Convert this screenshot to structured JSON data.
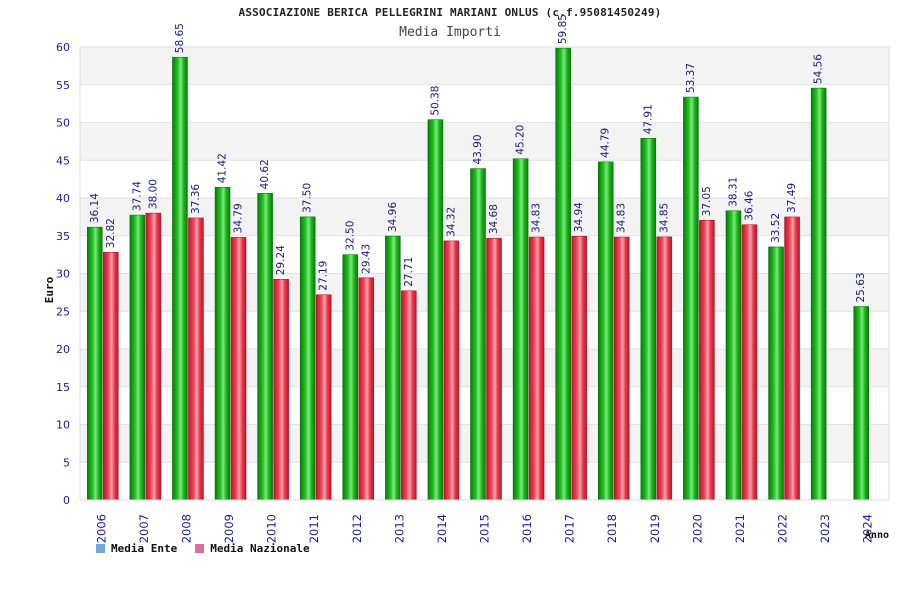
{
  "header": {
    "title": "ASSOCIAZIONE BERICA PELLEGRINI MARIANI ONLUS (c.f.95081450249)",
    "subtitle": "Media Importi"
  },
  "legend": {
    "items": [
      {
        "label": "Media Ente",
        "color": "#6fa8dc"
      },
      {
        "label": "Media Nazionale",
        "color": "#e06c9f"
      }
    ]
  },
  "chart_data": {
    "type": "bar",
    "title": "ASSOCIAZIONE BERICA PELLEGRINI MARIANI ONLUS (c.f.95081450249)",
    "subtitle": "Media Importi",
    "xlabel": "Anno",
    "ylabel": "Euro",
    "ylim": [
      0,
      60
    ],
    "yticks": [
      0,
      5,
      10,
      15,
      20,
      25,
      30,
      35,
      40,
      45,
      50,
      55,
      60
    ],
    "grid": true,
    "legend_position": "bottom-left",
    "categories": [
      "2006",
      "2007",
      "2008",
      "2009",
      "2010",
      "2011",
      "2012",
      "2013",
      "2014",
      "2015",
      "2016",
      "2017",
      "2018",
      "2019",
      "2020",
      "2021",
      "2022",
      "2023",
      "2024"
    ],
    "series": [
      {
        "name": "Media Ente",
        "color": "green",
        "values": [
          36.14,
          37.74,
          58.65,
          41.42,
          40.62,
          37.5,
          32.5,
          34.96,
          50.38,
          43.9,
          45.2,
          59.85,
          44.79,
          47.91,
          53.37,
          38.31,
          33.52,
          54.56,
          25.63
        ],
        "labels": [
          "36.14",
          "37.74",
          "58.65",
          "41.42",
          "40.62",
          "37.50",
          "32.50",
          "34.96",
          "50.38",
          "43.90",
          "45.20",
          "59.85",
          "44.79",
          "47.91",
          "53.37",
          "38.31",
          "33.52",
          "54.56",
          "25.63"
        ]
      },
      {
        "name": "Media Nazionale",
        "color": "red",
        "values": [
          32.82,
          38.0,
          37.36,
          34.79,
          29.24,
          27.19,
          29.43,
          27.71,
          34.32,
          34.68,
          34.83,
          34.94,
          34.83,
          34.85,
          37.05,
          36.46,
          37.49,
          null,
          null
        ],
        "labels": [
          "32.82",
          "38.00",
          "37.36",
          "34.79",
          "29.24",
          "27.19",
          "29.43",
          "27.71",
          "34.32",
          "34.68",
          "34.83",
          "34.94",
          "34.83",
          "34.85",
          "37.05",
          "36.46",
          "37.49",
          "",
          ""
        ]
      }
    ]
  }
}
